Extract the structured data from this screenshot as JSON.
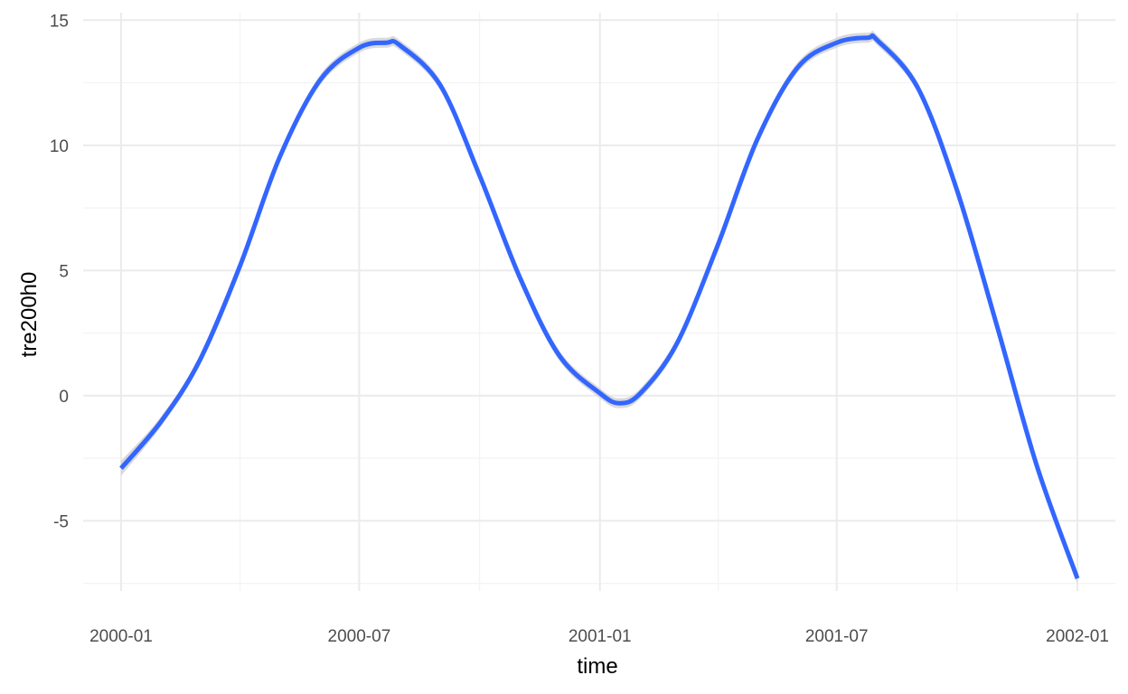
{
  "chart_data": {
    "type": "line",
    "title": "",
    "xlabel": "time",
    "ylabel": "tre200h0",
    "grid": true,
    "legend": "none",
    "line_color": "#3366ff",
    "ribbon_color": "#cccccc",
    "x_ticks": [
      "2000-01",
      "2000-07",
      "2001-01",
      "2001-07",
      "2002-01"
    ],
    "y_ticks": [
      -5,
      0,
      5,
      10,
      15
    ],
    "xlim": [
      "1999-12-03",
      "2002-01-30"
    ],
    "ylim": [
      -7.8,
      15.3
    ],
    "series": [
      {
        "x": [
          "2000-01-01",
          "2000-02-01",
          "2000-03-01",
          "2000-04-01",
          "2000-05-01",
          "2000-06-01",
          "2000-07-01",
          "2000-07-22",
          "2000-08-01",
          "2000-09-01",
          "2000-10-01",
          "2000-11-01",
          "2000-12-01",
          "2001-01-01",
          "2001-01-16",
          "2001-02-01",
          "2001-03-01",
          "2001-04-01",
          "2001-05-01",
          "2001-06-01",
          "2001-07-01",
          "2001-07-25",
          "2001-08-01",
          "2001-09-01",
          "2001-10-01",
          "2001-11-01",
          "2001-12-01",
          "2002-01-01"
        ],
        "y": [
          -2.9,
          -1.0,
          1.4,
          5.2,
          9.5,
          12.6,
          13.9,
          14.1,
          14.0,
          12.4,
          8.8,
          4.7,
          1.6,
          0.1,
          -0.3,
          0.1,
          2.1,
          6.0,
          10.2,
          13.1,
          14.1,
          14.3,
          14.2,
          12.3,
          8.2,
          2.7,
          -2.8,
          -7.3
        ],
        "lower": [
          -3.2,
          -1.2,
          1.2,
          5.0,
          9.3,
          12.4,
          13.7,
          13.9,
          13.8,
          12.2,
          8.6,
          4.5,
          1.4,
          -0.1,
          -0.5,
          -0.1,
          1.9,
          5.8,
          10.0,
          12.9,
          13.9,
          14.1,
          14.0,
          12.1,
          8.0,
          2.5,
          -3.0,
          -7.5
        ],
        "upper": [
          -2.6,
          -0.8,
          1.6,
          5.4,
          9.7,
          12.8,
          14.1,
          14.3,
          14.2,
          12.6,
          9.0,
          4.9,
          1.8,
          0.3,
          -0.1,
          0.3,
          2.3,
          6.2,
          10.4,
          13.3,
          14.3,
          14.5,
          14.4,
          12.5,
          8.4,
          2.9,
          -2.6,
          -7.1
        ]
      }
    ]
  }
}
